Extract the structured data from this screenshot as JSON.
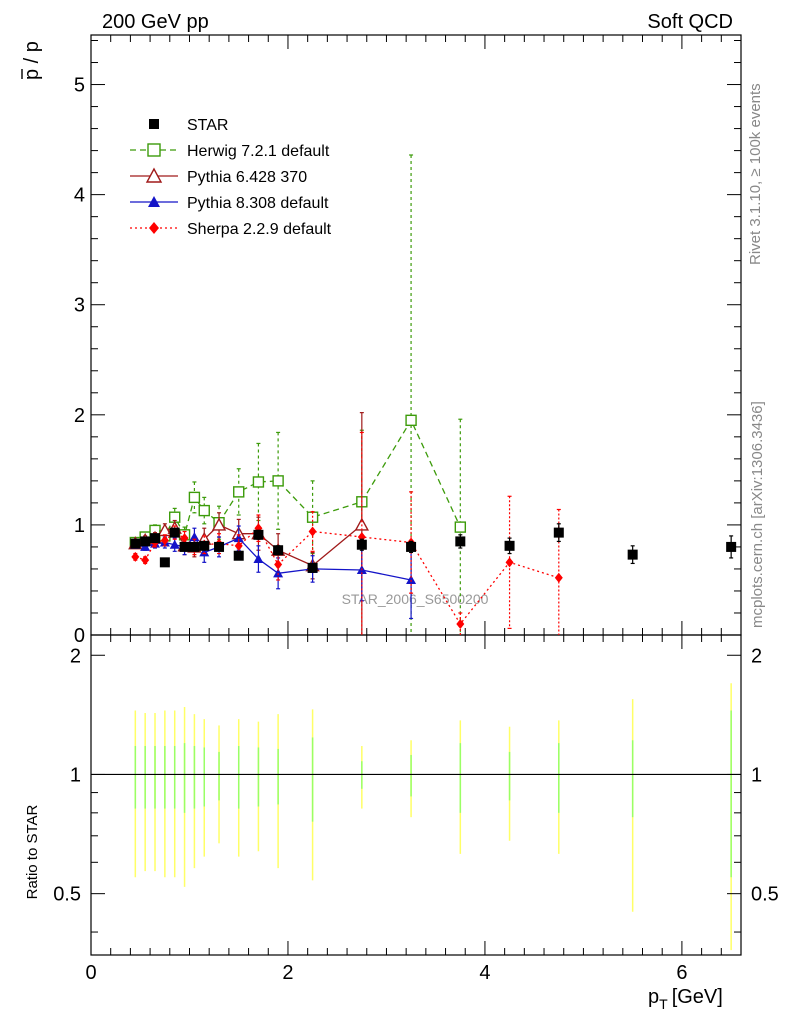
{
  "header": {
    "left": "200 GeV pp",
    "right": "Soft QCD"
  },
  "side_labels": {
    "rivet": "Rivet 3.1.10, ≥ 100k events",
    "mcplots": "mcplots.cern.ch [arXiv:1306.3436]"
  },
  "watermark": "STAR_2006_S6500200",
  "chart_data": [
    {
      "type": "scatter",
      "panel": "main",
      "ylabel_main": "p",
      "ylabel_over": "p",
      "xlim": [
        0,
        6.6
      ],
      "ylim": [
        0,
        5.45
      ],
      "yticks": [
        "0",
        "1",
        "2",
        "3",
        "4",
        "5"
      ],
      "legend_position": "top-left",
      "series": [
        {
          "name": "STAR",
          "color": "#000000",
          "marker": "square-filled",
          "line": "none",
          "x": [
            0.45,
            0.55,
            0.65,
            0.75,
            0.85,
            0.95,
            1.05,
            1.15,
            1.3,
            1.5,
            1.7,
            1.9,
            2.25,
            2.75,
            3.25,
            3.75,
            4.25,
            4.75,
            5.5,
            6.5
          ],
          "y": [
            0.83,
            0.85,
            0.88,
            0.66,
            0.93,
            0.8,
            0.8,
            0.81,
            0.8,
            0.72,
            0.91,
            0.77,
            0.61,
            0.82,
            0.8,
            0.85,
            0.81,
            0.93,
            0.73,
            0.8
          ],
          "err": [
            0.03,
            0.03,
            0.03,
            0.03,
            0.03,
            0.03,
            0.03,
            0.03,
            0.03,
            0.03,
            0.04,
            0.04,
            0.04,
            0.05,
            0.05,
            0.06,
            0.07,
            0.08,
            0.08,
            0.1
          ]
        },
        {
          "name": "Herwig 7.2.1 default",
          "color": "#3c9b0a",
          "marker": "square-open",
          "line": "dashed",
          "x": [
            0.45,
            0.55,
            0.65,
            0.75,
            0.85,
            0.95,
            1.05,
            1.15,
            1.3,
            1.5,
            1.7,
            1.9,
            2.25,
            2.75,
            3.25,
            3.75
          ],
          "y": [
            0.84,
            0.89,
            0.95,
            0.9,
            1.07,
            0.91,
            1.25,
            1.13,
            1.02,
            1.3,
            1.39,
            1.4,
            1.07,
            1.21,
            1.95,
            0.98
          ],
          "err": [
            0.03,
            0.04,
            0.05,
            0.06,
            0.08,
            0.07,
            0.14,
            0.12,
            0.15,
            0.21,
            0.35,
            0.44,
            0.33,
            0.65,
            2.41,
            0.98
          ]
        },
        {
          "name": "Pythia 6.428 370",
          "color": "#a01a1a",
          "marker": "triangle-open",
          "line": "solid",
          "x": [
            0.45,
            0.55,
            0.65,
            0.75,
            0.85,
            0.95,
            1.05,
            1.15,
            1.3,
            1.5,
            1.7,
            1.9,
            2.25,
            2.75
          ],
          "y": [
            0.83,
            0.86,
            0.88,
            0.95,
            0.97,
            0.81,
            0.8,
            0.87,
            1.0,
            0.92,
            0.92,
            0.77,
            0.63,
            1.0
          ],
          "err": [
            0.03,
            0.04,
            0.05,
            0.06,
            0.07,
            0.08,
            0.09,
            0.1,
            0.11,
            0.13,
            0.15,
            0.15,
            0.12,
            1.02
          ]
        },
        {
          "name": "Pythia 8.308 default",
          "color": "#1414c8",
          "marker": "triangle-filled",
          "line": "solid",
          "x": [
            0.45,
            0.55,
            0.65,
            0.75,
            0.85,
            0.95,
            1.05,
            1.15,
            1.3,
            1.5,
            1.7,
            1.9,
            2.25,
            2.75,
            3.25
          ],
          "y": [
            0.82,
            0.8,
            0.83,
            0.84,
            0.82,
            0.8,
            0.89,
            0.75,
            0.8,
            0.88,
            0.69,
            0.56,
            0.6,
            0.59,
            0.5
          ],
          "err": [
            0.03,
            0.03,
            0.04,
            0.05,
            0.06,
            0.07,
            0.08,
            0.09,
            0.09,
            0.11,
            0.12,
            0.14,
            0.12,
            0.28,
            0.35
          ]
        },
        {
          "name": "Sherpa 2.2.9 default",
          "color": "#ff0000",
          "marker": "diamond-filled",
          "line": "dotted",
          "x": [
            0.45,
            0.55,
            0.65,
            0.75,
            0.85,
            0.95,
            1.05,
            1.15,
            1.3,
            1.5,
            1.7,
            1.9,
            2.25,
            2.75,
            3.25,
            3.75,
            4.25,
            4.75
          ],
          "y": [
            0.71,
            0.68,
            0.84,
            0.86,
            0.93,
            0.88,
            0.8,
            0.82,
            0.83,
            0.81,
            0.97,
            0.64,
            0.94,
            0.89,
            0.84,
            0.1,
            0.66,
            0.52
          ],
          "err": [
            0.03,
            0.03,
            0.04,
            0.05,
            0.06,
            0.06,
            0.07,
            0.08,
            0.09,
            0.1,
            0.12,
            0.14,
            0.18,
            0.95,
            0.46,
            0.1,
            0.6,
            0.62
          ]
        }
      ]
    },
    {
      "type": "scatter",
      "panel": "ratio",
      "ylabel": "Ratio to STAR",
      "xlabel": "p",
      "xlabel_sub": "T",
      "xlabel_unit": "[GeV]",
      "xlim": [
        0,
        6.6
      ],
      "ylim": [
        0.35,
        2.25
      ],
      "reference_line": 1,
      "xticks": [
        "0",
        "2",
        "4",
        "6"
      ],
      "yticks": [
        "0.5",
        "1",
        "2"
      ],
      "bands": {
        "x": [
          0.45,
          0.55,
          0.65,
          0.75,
          0.85,
          0.95,
          1.05,
          1.15,
          1.3,
          1.5,
          1.7,
          1.9,
          2.25,
          2.75,
          3.25,
          3.75,
          4.25,
          4.75,
          5.5,
          6.5
        ],
        "inner_halfwidth": [
          0.18,
          0.18,
          0.18,
          0.18,
          0.18,
          0.2,
          0.18,
          0.17,
          0.14,
          0.18,
          0.17,
          0.16,
          0.24,
          0.08,
          0.12,
          0.2,
          0.14,
          0.2,
          0.22,
          0.45
        ],
        "outer_halfwidth": [
          0.45,
          0.43,
          0.43,
          0.45,
          0.45,
          0.48,
          0.42,
          0.38,
          0.33,
          0.38,
          0.36,
          0.42,
          0.46,
          0.18,
          0.22,
          0.37,
          0.32,
          0.37,
          0.55,
          0.7
        ],
        "inner_color": "#99ff66",
        "outer_color": "#ffff66"
      }
    }
  ]
}
